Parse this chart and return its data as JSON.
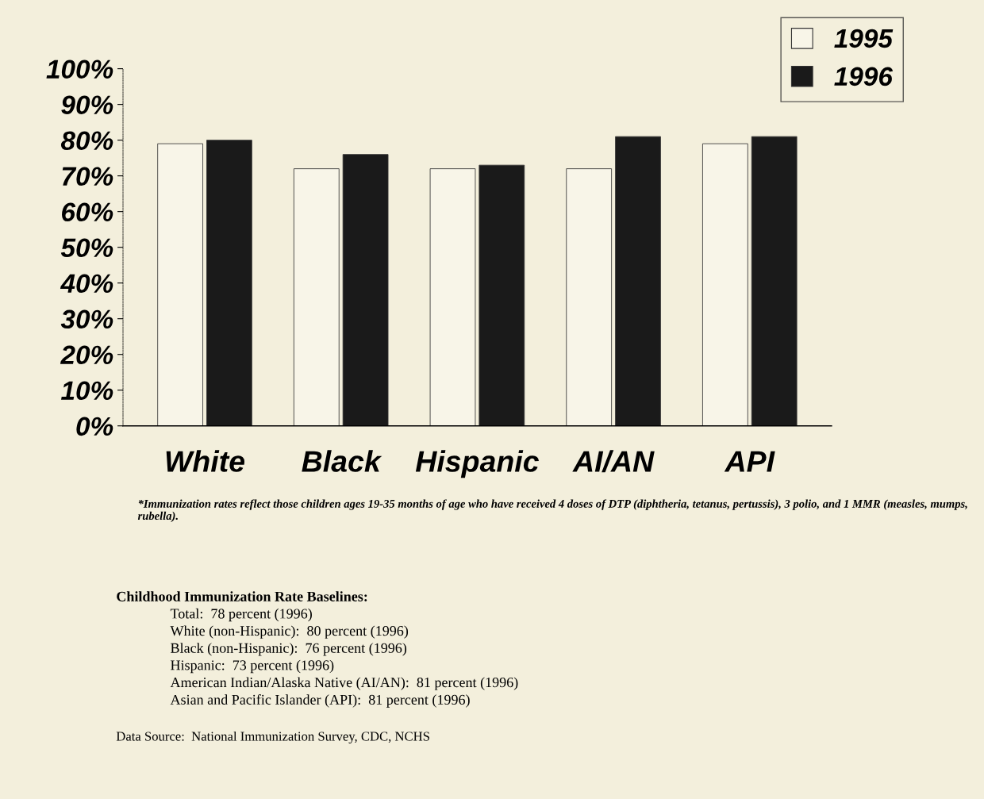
{
  "chart_data": {
    "type": "bar",
    "categories": [
      "White",
      "Black",
      "Hispanic",
      "AI/AN",
      "API"
    ],
    "series": [
      {
        "name": "1995",
        "color": "#f8f5e8",
        "values": [
          79,
          72,
          72,
          72,
          79
        ]
      },
      {
        "name": "1996",
        "color": "#1a1a1a",
        "values": [
          80,
          76,
          73,
          81,
          81
        ]
      }
    ],
    "ylim": [
      0,
      100
    ],
    "yticks": [
      {
        "value": 0,
        "label": "0%"
      },
      {
        "value": 10,
        "label": "10%"
      },
      {
        "value": 20,
        "label": "20%"
      },
      {
        "value": 30,
        "label": "30%"
      },
      {
        "value": 40,
        "label": "40%"
      },
      {
        "value": 50,
        "label": "50%"
      },
      {
        "value": 60,
        "label": "60%"
      },
      {
        "value": 70,
        "label": "70%"
      },
      {
        "value": 80,
        "label": "80%"
      },
      {
        "value": 90,
        "label": "90%"
      },
      {
        "value": 100,
        "label": "100%"
      }
    ],
    "grid": false,
    "legend": "top right",
    "annotations": [
      "*Immunization rates reflect those children ages 19-35 months of age who have received 4 doses of DTP (diphtheria, tetanus, pertussis), 3 polio, and 1 MMR (measles, mumps, rubella).",
      "Childhood Immunization Rate Baselines:",
      "Total:  78 percent (1996)",
      "White (non-Hispanic):  80 percent (1996)",
      "Black (non-Hispanic):  76 percent (1996)",
      "Hispanic:  73 percent (1996)",
      "American Indian/Alaska Native (AI/AN):  81 percent (1996)",
      "Asian and Pacific Islander (API):  81 percent (1996)",
      "Data Source:  National Immunization Survey, CDC, NCHS"
    ]
  }
}
